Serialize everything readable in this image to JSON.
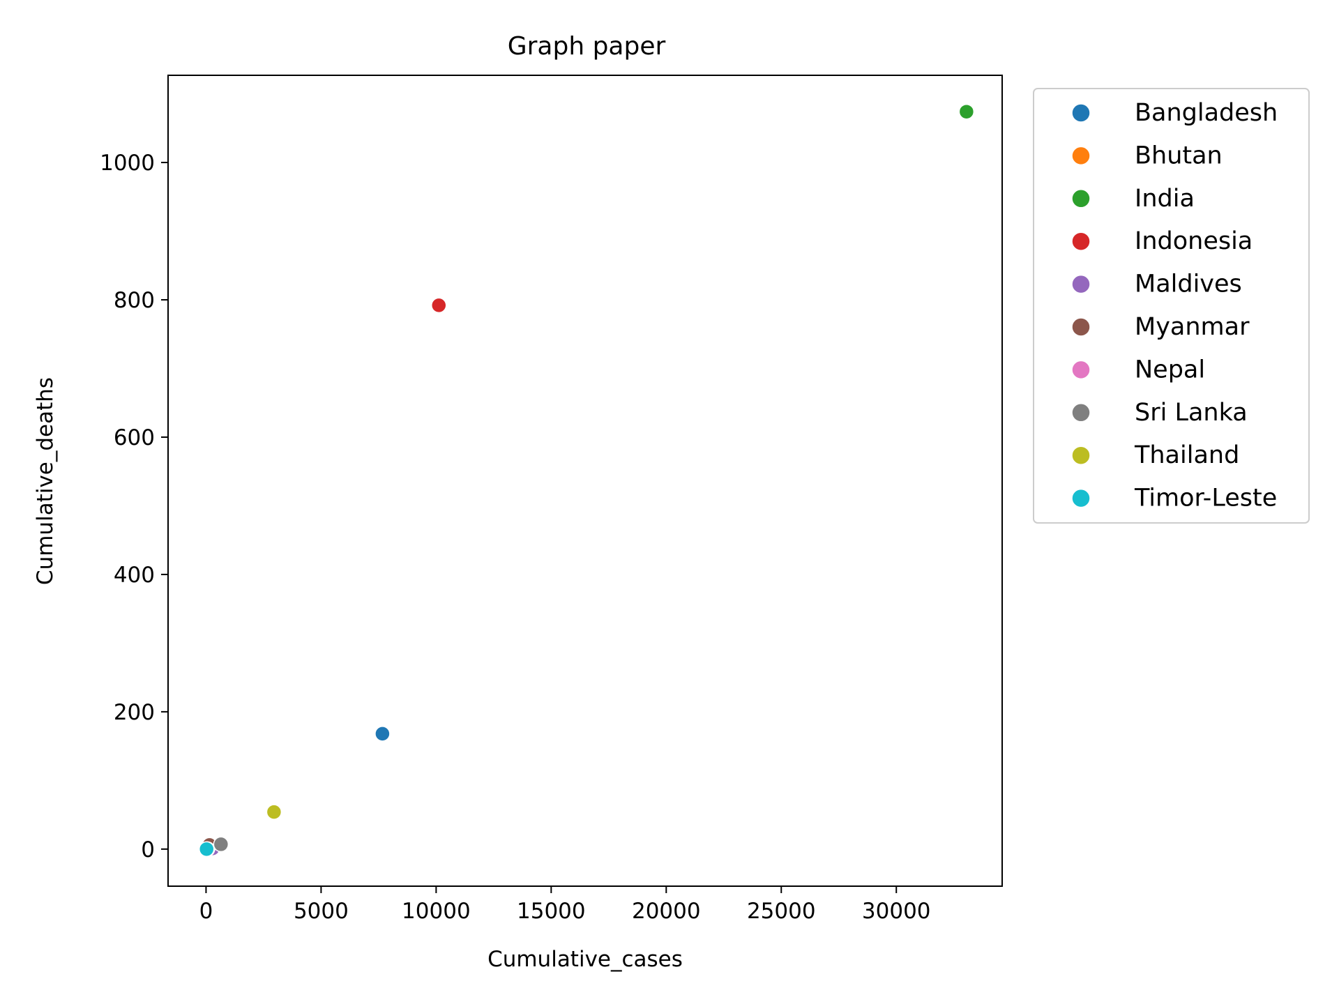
{
  "chart_data": {
    "type": "scatter",
    "title": "Graph paper",
    "xlabel": "Cumulative_cases",
    "ylabel": "Cumulative_deaths",
    "xlim": [
      -1650,
      34600
    ],
    "ylim": [
      -54,
      1127
    ],
    "xticks": [
      0,
      5000,
      10000,
      15000,
      20000,
      25000,
      30000
    ],
    "yticks": [
      0,
      200,
      400,
      600,
      800,
      1000
    ],
    "grid": false,
    "legend": "outside-top-right",
    "series": [
      {
        "name": "Bangladesh",
        "color": "#1f77b4",
        "x": [
          7667
        ],
        "y": [
          168
        ]
      },
      {
        "name": "Bhutan",
        "color": "#ff7f0e",
        "x": [
          7
        ],
        "y": [
          0
        ]
      },
      {
        "name": "India",
        "color": "#2ca02c",
        "x": [
          33050
        ],
        "y": [
          1074
        ]
      },
      {
        "name": "Indonesia",
        "color": "#d62728",
        "x": [
          10118
        ],
        "y": [
          792
        ]
      },
      {
        "name": "Maldives",
        "color": "#9467bd",
        "x": [
          280
        ],
        "y": [
          1
        ]
      },
      {
        "name": "Myanmar",
        "color": "#8c564b",
        "x": [
          150
        ],
        "y": [
          6
        ]
      },
      {
        "name": "Nepal",
        "color": "#e377c2",
        "x": [
          57
        ],
        "y": [
          0
        ]
      },
      {
        "name": "Sri Lanka",
        "color": "#7f7f7f",
        "x": [
          649
        ],
        "y": [
          7
        ]
      },
      {
        "name": "Thailand",
        "color": "#bcbd22",
        "x": [
          2954
        ],
        "y": [
          54
        ]
      },
      {
        "name": "Timor-Leste",
        "color": "#17becf",
        "x": [
          24
        ],
        "y": [
          0
        ]
      }
    ]
  }
}
